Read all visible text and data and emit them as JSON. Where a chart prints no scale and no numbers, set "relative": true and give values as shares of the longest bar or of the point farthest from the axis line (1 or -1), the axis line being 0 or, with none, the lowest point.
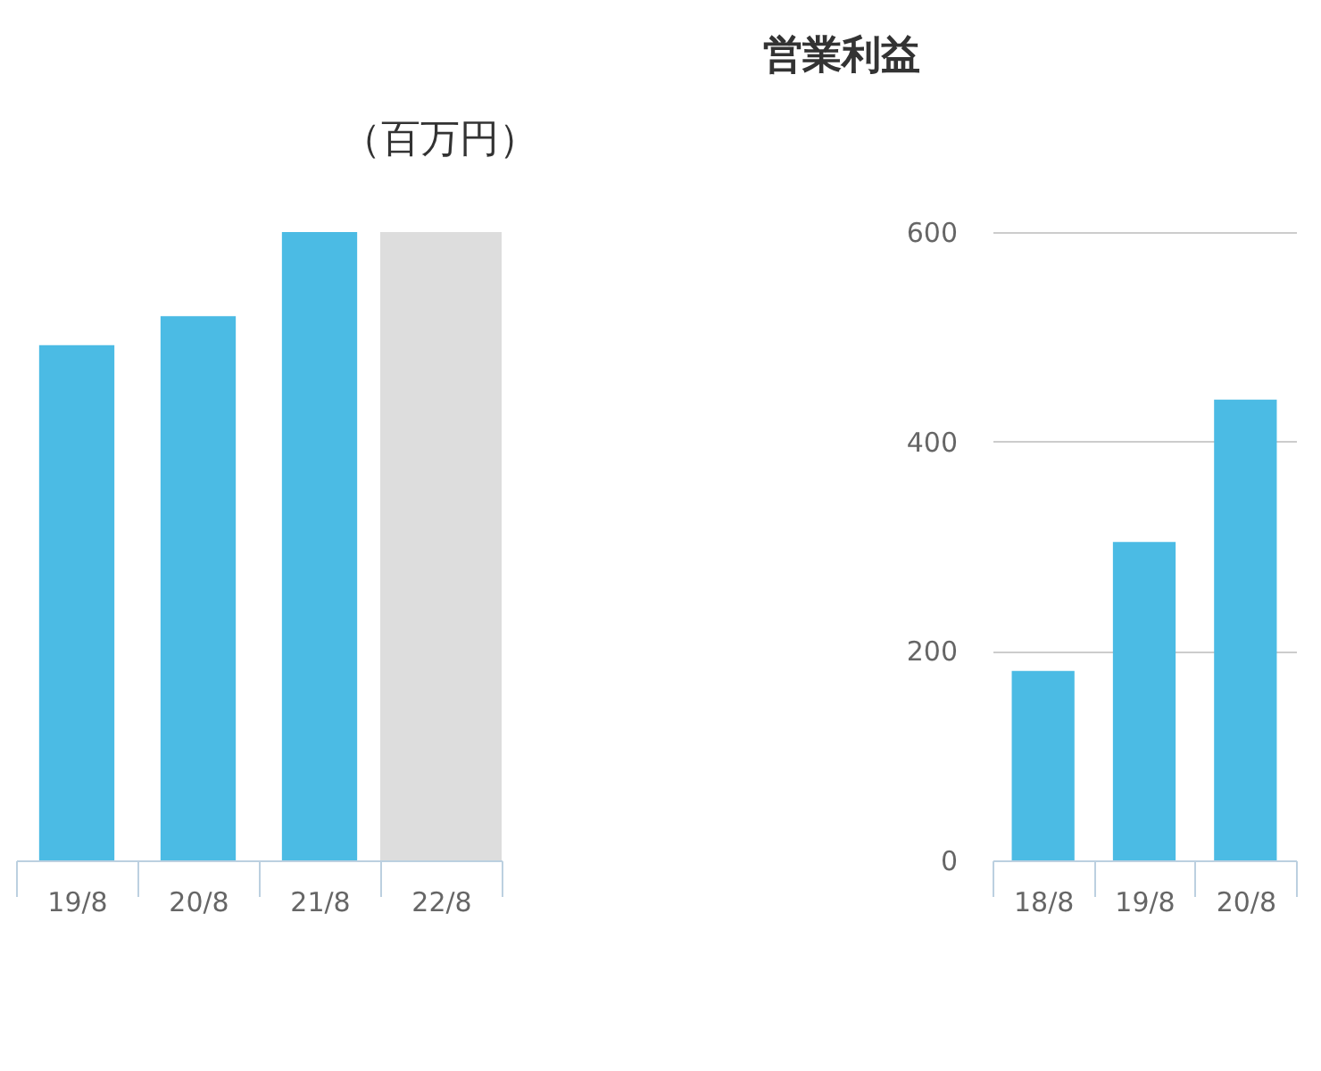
{
  "chart_data": [
    {
      "type": "bar",
      "relative": true,
      "annotations": [
        "（百万円）"
      ],
      "categories": [
        "19/8",
        "20/8",
        "21/8",
        "22/8"
      ],
      "series": [
        {
          "color": "#4bbbe4",
          "values": [
            0.82,
            0.866,
            1,
            null
          ]
        }
      ],
      "bands": [
        {
          "axis": "x",
          "from": "22/8",
          "to": "22/8",
          "color": "#dddddd"
        }
      ]
    },
    {
      "type": "bar",
      "title": "営業利益",
      "categories": [
        "18/8",
        "19/8",
        "20/8"
      ],
      "series": [
        {
          "color": "#4bbbe4",
          "values": [
            181,
            304,
            440
          ]
        }
      ],
      "ylim": [
        0,
        600
      ],
      "yticks": [
        0,
        200,
        400,
        600
      ],
      "grid": "y"
    }
  ]
}
